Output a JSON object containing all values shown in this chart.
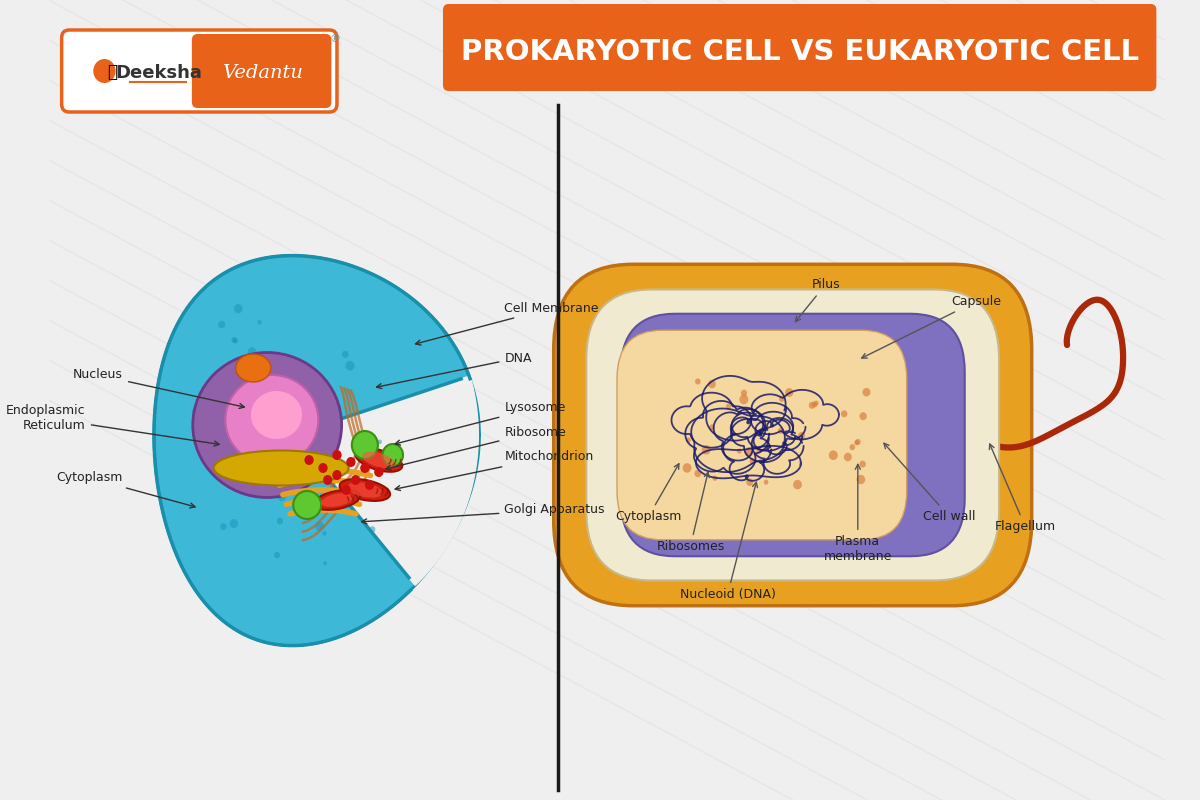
{
  "title": "PROKARYOTIC CELL VS EUKARYOTIC CELL",
  "title_bg_color": "#E8621A",
  "title_text_color": "#FFFFFF",
  "bg_color": "#EFEFEF",
  "divider_color": "#1a1a1a",
  "logo_text1": "Deeksha",
  "logo_text2": "Vedantu",
  "label_fontsize": 9,
  "label_color": "#222222",
  "euk_cell_color": "#2EB5D5",
  "euk_cell_edge": "#1A8FAA",
  "nucleus_color": "#A060B0",
  "nucleus_inner_color": "#E080C0",
  "golgi_color": "#E8A020",
  "mito_color": "#CC2010",
  "lyso_color": "#55CC30",
  "ribo_color": "#CC1010",
  "prok_outer_color": "#E8A020",
  "prok_outer_edge": "#C07010",
  "prok_inner_color": "#F5C878",
  "prok_white_color": "#F0EAD0",
  "prok_purple_color": "#8070C0",
  "prok_cyto_color": "#F5D8A0",
  "dna_color": "#1A1A6A",
  "pili_color": "#B03010",
  "flagellum_color": "#AA2808"
}
